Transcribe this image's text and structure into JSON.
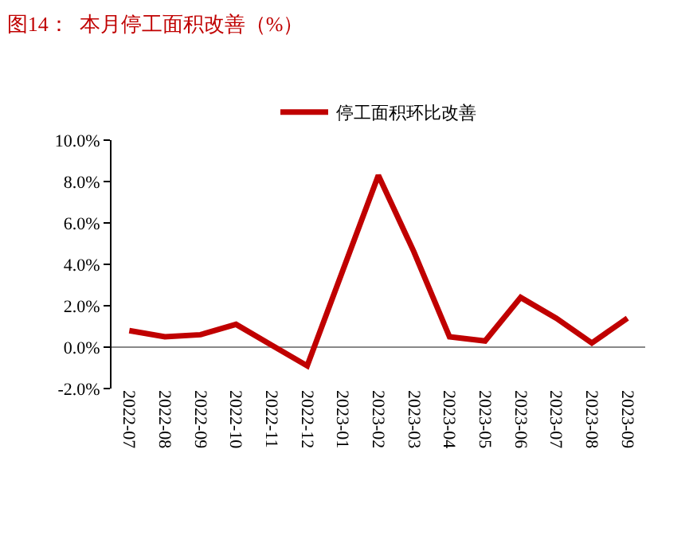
{
  "chart_data": {
    "type": "line",
    "title": "图14：  本月停工面积改善（%）",
    "categories": [
      "2022-07",
      "2022-08",
      "2022-09",
      "2022-10",
      "2022-11",
      "2022-12",
      "2023-01",
      "2023-02",
      "2023-03",
      "2023-04",
      "2023-05",
      "2023-06",
      "2023-07",
      "2023-08",
      "2023-09"
    ],
    "series": [
      {
        "name": "停工面积环比改善",
        "color": "#c00000",
        "values": [
          0.8,
          0.5,
          0.6,
          1.1,
          0.1,
          -0.9,
          3.7,
          8.3,
          4.6,
          0.5,
          0.3,
          2.4,
          1.4,
          0.2,
          1.4
        ]
      }
    ],
    "ylim": [
      -2,
      10
    ],
    "yticks": [
      {
        "value": -2,
        "label": "-2.0%"
      },
      {
        "value": 0,
        "label": "0.0%"
      },
      {
        "value": 2,
        "label": "2.0%"
      },
      {
        "value": 4,
        "label": "4.0%"
      },
      {
        "value": 6,
        "label": "6.0%"
      },
      {
        "value": 8,
        "label": "8.0%"
      },
      {
        "value": 10,
        "label": "10.0%"
      }
    ],
    "legend": "top",
    "marker": "none",
    "line_style": "solid"
  }
}
